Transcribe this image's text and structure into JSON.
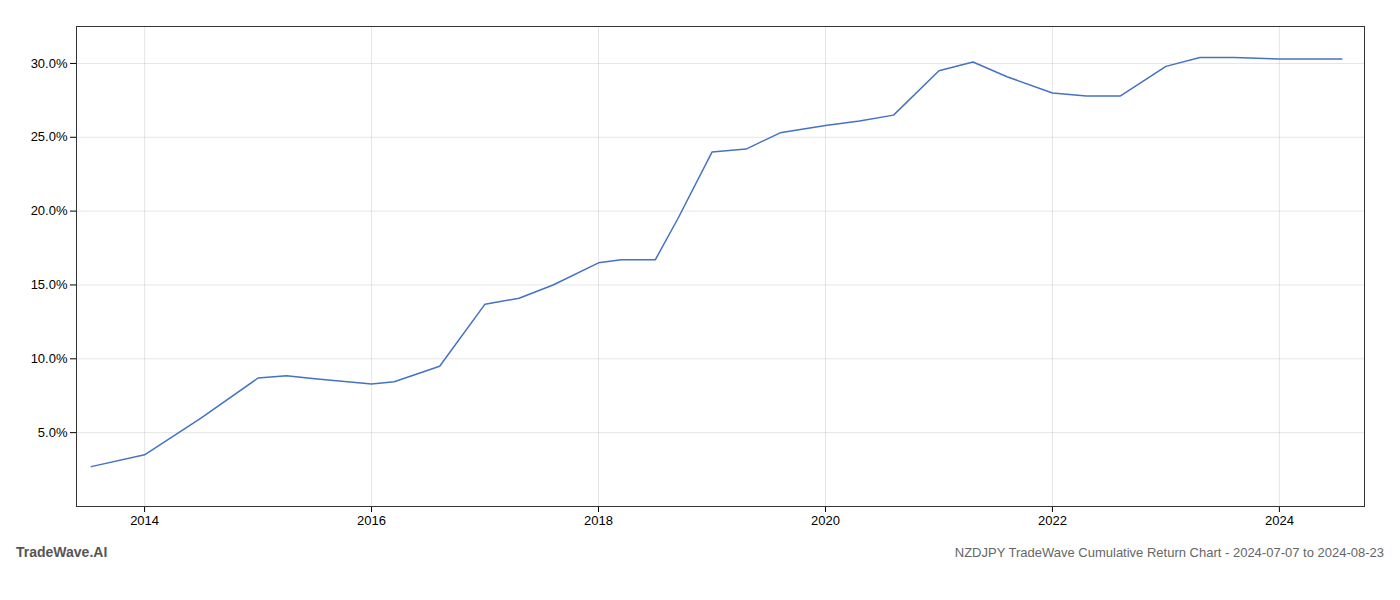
{
  "chart_data": {
    "type": "line",
    "title": "NZDJPY TradeWave Cumulative Return Chart - 2024-07-07 to 2024-08-23",
    "annotations": [
      "TradeWave.AI"
    ],
    "x": [
      2013.53,
      2014.0,
      2014.5,
      2015.0,
      2015.25,
      2015.5,
      2016.0,
      2016.2,
      2016.6,
      2017.0,
      2017.3,
      2017.6,
      2018.0,
      2018.2,
      2018.5,
      2018.7,
      2019.0,
      2019.3,
      2019.6,
      2020.0,
      2020.3,
      2020.6,
      2021.0,
      2021.3,
      2021.6,
      2022.0,
      2022.3,
      2022.6,
      2023.0,
      2023.3,
      2023.6,
      2024.0,
      2024.3,
      2024.55
    ],
    "values": [
      2.7,
      3.5,
      6.0,
      8.7,
      8.85,
      8.65,
      8.3,
      8.45,
      9.5,
      13.7,
      14.1,
      15.0,
      16.5,
      16.7,
      16.7,
      19.5,
      24.0,
      24.2,
      25.3,
      25.8,
      26.1,
      26.5,
      29.5,
      30.1,
      29.1,
      28.0,
      27.8,
      27.8,
      29.8,
      30.4,
      30.4,
      30.3,
      30.3,
      30.3
    ],
    "color": "#4472c4",
    "xlim": [
      2013.4,
      2024.75
    ],
    "ylim": [
      0,
      32.5
    ],
    "xticks": [
      2014,
      2016,
      2018,
      2020,
      2022,
      2024
    ],
    "yticks": [
      {
        "value": 5.0,
        "label": "5.0%"
      },
      {
        "value": 10.0,
        "label": "10.0%"
      },
      {
        "value": 15.0,
        "label": "15.0%"
      },
      {
        "value": 20.0,
        "label": "20.0%"
      },
      {
        "value": 25.0,
        "label": "25.0%"
      },
      {
        "value": 30.0,
        "label": "30.0%"
      }
    ],
    "grid": true
  }
}
